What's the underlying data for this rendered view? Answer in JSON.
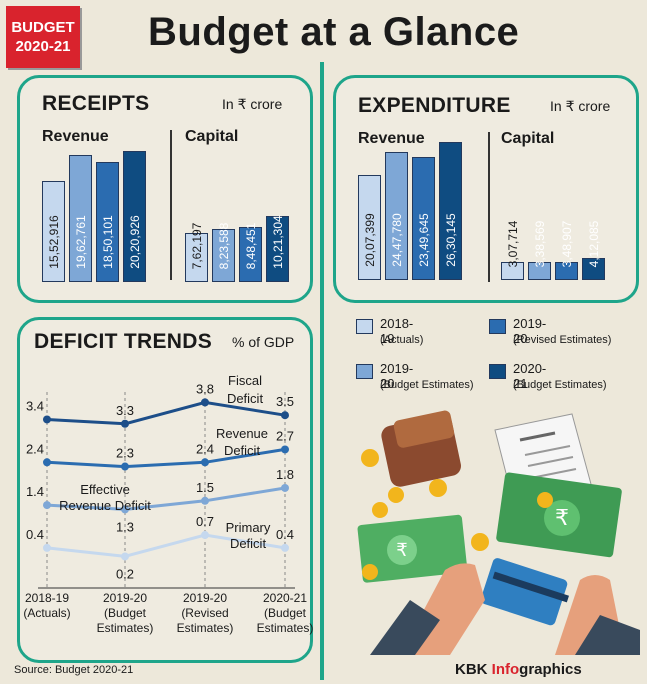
{
  "badge": {
    "line1": "BUDGET",
    "line2": "2020-21"
  },
  "title": "Budget at a Glance",
  "colors": {
    "teal": "#1ea58a",
    "red": "#d9232d",
    "c2018": "#c5d8ee",
    "c2019be": "#7ea7d6",
    "c2019re": "#2b6cb0",
    "c2021": "#0f4c81"
  },
  "receipts": {
    "title": "RECEIPTS",
    "unit": "In ₹ crore",
    "revenue_label": "Revenue",
    "capital_label": "Capital"
  },
  "expenditure": {
    "title": "EXPENDITURE",
    "unit": "In ₹ crore",
    "revenue_label": "Revenue",
    "capital_label": "Capital"
  },
  "deficit": {
    "title": "DEFICIT TRENDS",
    "unit": "% of GDP"
  },
  "legend": [
    {
      "label": "2018-19",
      "sub": "(Actuals)"
    },
    {
      "label": "2019-20",
      "sub": "(Revised Estimates)"
    },
    {
      "label": "2019-20",
      "sub": "(Budget Estimates)"
    },
    {
      "label": "2020-21",
      "sub": "(Budget Estimates)"
    }
  ],
  "series_labels": {
    "fiscal": [
      "Fiscal",
      "Deficit"
    ],
    "revenue": [
      "Revenue",
      "Deficit"
    ],
    "effective": [
      "Effective",
      "Revenue Deficit"
    ],
    "primary": [
      "Primary",
      "Deficit"
    ]
  },
  "xcats": [
    [
      "2018-19",
      "(Actuals)"
    ],
    [
      "2019-20",
      "(Budget",
      "Estimates)"
    ],
    [
      "2019-20",
      "(Revised",
      "Estimates)"
    ],
    [
      "2020-21",
      "(Budget",
      "Estimates)"
    ]
  ],
  "chart_data": [
    {
      "type": "bar",
      "title": "RECEIPTS",
      "subtitle": "Revenue",
      "unit": "In ₹ crore",
      "categories": [
        "2018-19 (Actuals)",
        "2019-20 (Budget Estimates)",
        "2019-20 (Revised Estimates)",
        "2020-21 (Budget Estimates)"
      ],
      "values": [
        1552916,
        1962761,
        1850101,
        2020926
      ],
      "labels": [
        "15,52,916",
        "19,62,761",
        "18,50,101",
        "20,20,926"
      ]
    },
    {
      "type": "bar",
      "title": "RECEIPTS",
      "subtitle": "Capital",
      "unit": "In ₹ crore",
      "categories": [
        "2018-19 (Actuals)",
        "2019-20 (Budget Estimates)",
        "2019-20 (Revised Estimates)",
        "2020-21 (Budget Estimates)"
      ],
      "values": [
        762197,
        823588,
        848451,
        1021304
      ],
      "labels": [
        "7,62,197",
        "8,23,588",
        "8,48,451",
        "10,21,304"
      ]
    },
    {
      "type": "bar",
      "title": "EXPENDITURE",
      "subtitle": "Revenue",
      "unit": "In ₹ crore",
      "categories": [
        "2018-19 (Actuals)",
        "2019-20 (Budget Estimates)",
        "2019-20 (Revised Estimates)",
        "2020-21 (Budget Estimates)"
      ],
      "values": [
        2007399,
        2447780,
        2349645,
        2630145
      ],
      "labels": [
        "20,07,399",
        "24,47,780",
        "23,49,645",
        "26,30,145"
      ]
    },
    {
      "type": "bar",
      "title": "EXPENDITURE",
      "subtitle": "Capital",
      "unit": "In ₹ crore",
      "categories": [
        "2018-19 (Actuals)",
        "2019-20 (Budget Estimates)",
        "2019-20 (Revised Estimates)",
        "2020-21 (Budget Estimates)"
      ],
      "values": [
        307714,
        338569,
        348907,
        412085
      ],
      "labels": [
        "3,07,714",
        "3,38,569",
        "3,48,907",
        "4,12,085"
      ]
    },
    {
      "type": "line",
      "title": "DEFICIT TRENDS",
      "unit": "% of GDP",
      "categories": [
        "2018-19 (Actuals)",
        "2019-20 (Budget Estimates)",
        "2019-20 (Revised Estimates)",
        "2020-21 (Budget Estimates)"
      ],
      "series": [
        {
          "name": "Fiscal Deficit",
          "values": [
            3.4,
            3.3,
            3.8,
            3.5
          ],
          "color": "#1d4e89"
        },
        {
          "name": "Revenue Deficit",
          "values": [
            2.4,
            2.3,
            2.4,
            2.7
          ],
          "color": "#2b6cb0"
        },
        {
          "name": "Effective Revenue Deficit",
          "values": [
            1.4,
            1.3,
            1.5,
            1.8
          ],
          "color": "#7ea7d6"
        },
        {
          "name": "Primary Deficit",
          "values": [
            0.4,
            0.2,
            0.7,
            0.4
          ],
          "color": "#c5d8ee"
        }
      ]
    }
  ],
  "footer": {
    "source": "Source: Budget 2020-21",
    "brand_kbk": "KBK ",
    "brand_info": "Info",
    "brand_graphics": "graphics"
  }
}
